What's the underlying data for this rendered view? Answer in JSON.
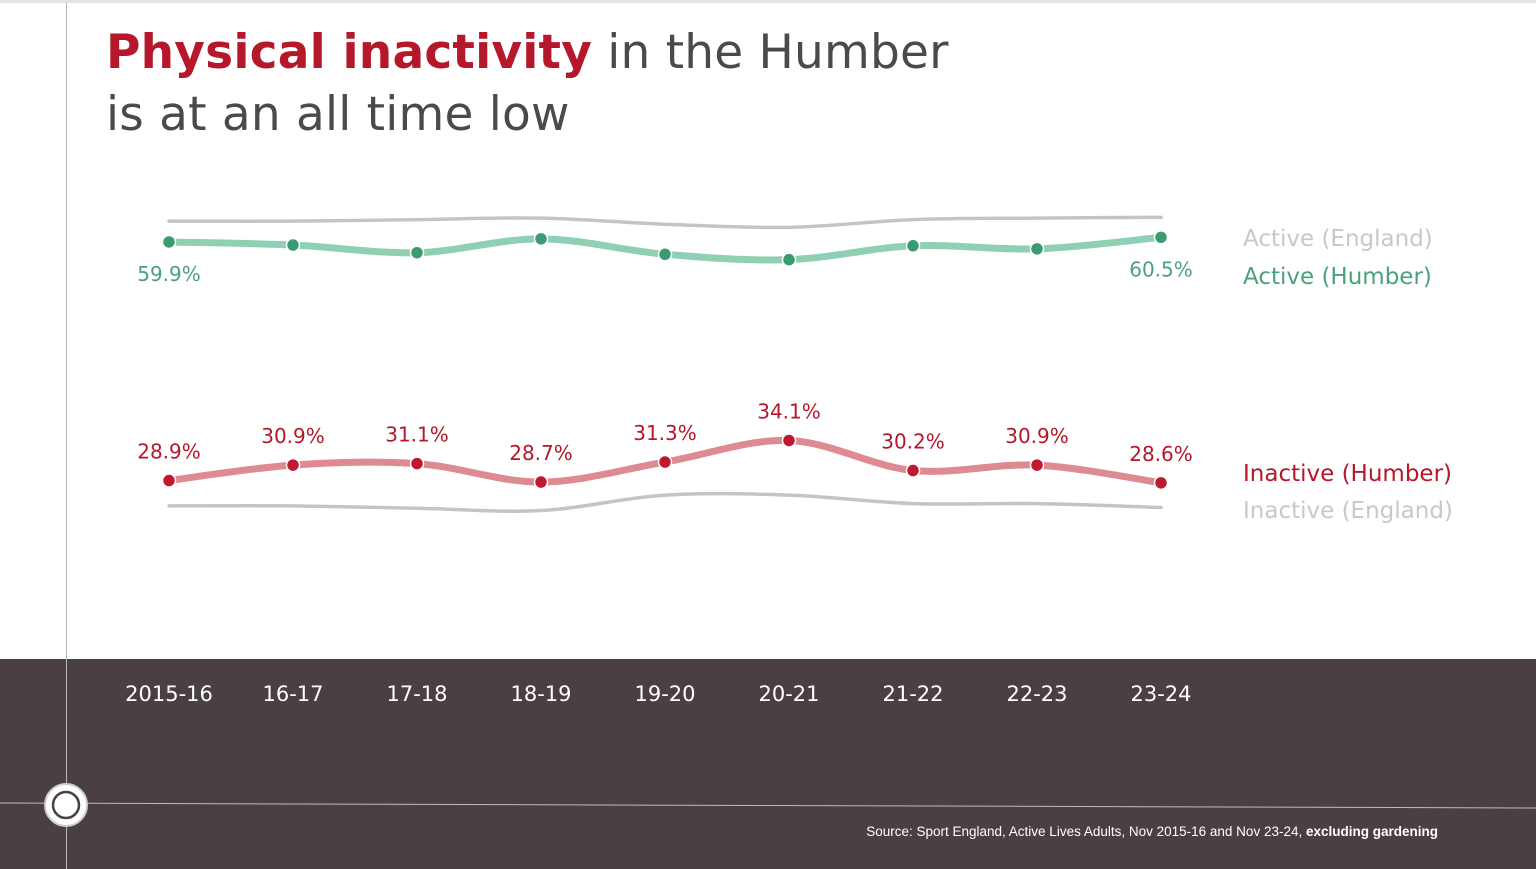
{
  "title": {
    "accent": "Physical inactivity",
    "rest_line1": " in the Humber",
    "line2": "is at an all time low"
  },
  "source": {
    "text": "Source: Sport England, Active Lives Adults, Nov 2015-16 and Nov 23-24,",
    "bold": "excluding gardening"
  },
  "colors": {
    "active_humber": "#8fcfb3",
    "active_humber_dot": "#3a9a72",
    "active_humber_label": "#4aa27c",
    "inactive_humber": "#de8a93",
    "inactive_humber_dot": "#c0182e",
    "inactive_humber_label": "#b5172b",
    "england_line": "#c4c4c4",
    "england_label": "#c8c8c8",
    "title_accent": "#b5172b",
    "title_text": "#4a4a4a",
    "footer_band": "#4a4044",
    "tick_label": "#ffffff"
  },
  "chart_data": {
    "type": "line",
    "categories": [
      "2015-16",
      "16-17",
      "17-18",
      "18-19",
      "19-20",
      "20-21",
      "21-22",
      "22-23",
      "23-24"
    ],
    "series": [
      {
        "name": "Active (England)",
        "values": [
          62.6,
          62.6,
          62.8,
          63.0,
          62.2,
          61.8,
          62.8,
          63.0,
          63.1
        ]
      },
      {
        "name": "Active (Humber)",
        "values": [
          59.9,
          59.5,
          58.5,
          60.3,
          58.3,
          57.6,
          59.4,
          59.0,
          60.5
        ],
        "data_labels": [
          "59.9%",
          "",
          "",
          "",
          "",
          "",
          "",
          "",
          "60.5%"
        ]
      },
      {
        "name": "Inactive (Humber)",
        "values": [
          28.9,
          30.9,
          31.1,
          28.7,
          31.3,
          34.1,
          30.2,
          30.9,
          28.6
        ],
        "data_labels": [
          "28.9%",
          "30.9%",
          "31.1%",
          "28.7%",
          "31.3%",
          "34.1%",
          "30.2%",
          "30.9%",
          "28.6%"
        ]
      },
      {
        "name": "Inactive (England)",
        "values": [
          25.6,
          25.6,
          25.3,
          25.0,
          27.0,
          27.0,
          25.9,
          25.9,
          25.4
        ]
      }
    ],
    "ylim": [
      20,
      66
    ],
    "grid": false,
    "legend_placement": "right"
  }
}
